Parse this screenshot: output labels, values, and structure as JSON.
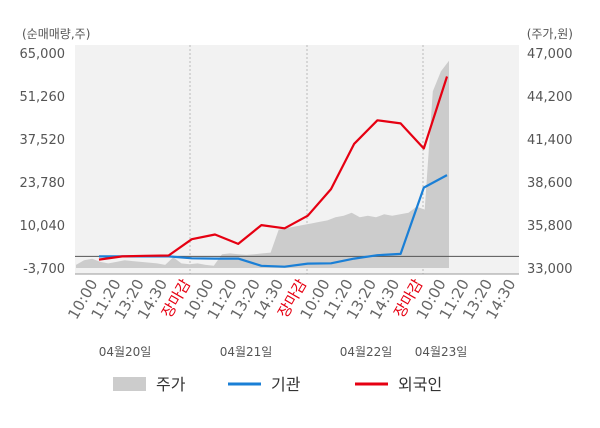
{
  "units": {
    "left": "(순매매량,주)",
    "right": "(주가,원)"
  },
  "chart_data": {
    "type": "line",
    "left_axis": {
      "ticks": [
        "65,000",
        "51,260",
        "37,520",
        "23,780",
        "10,040",
        "-3,700"
      ],
      "min": -3700,
      "max": 65000
    },
    "right_axis": {
      "ticks": [
        "47,000",
        "44,200",
        "41,400",
        "38,600",
        "35,800",
        "33,000"
      ],
      "min": 33000,
      "max": 47000
    },
    "x_ticks": [
      "10:00",
      "11:20",
      "13:20",
      "14:30",
      "장마감",
      "10:00",
      "11:20",
      "13:20",
      "14:30",
      "장마감",
      "10:00",
      "11:20",
      "13:20",
      "14:30",
      "장마감",
      "10:00",
      "11:20",
      "13:20",
      "14:30"
    ],
    "date_labels": [
      "04월20일",
      "04월21일",
      "04월22일",
      "04월23일"
    ],
    "series": [
      {
        "name": "주가",
        "style": "area",
        "axis": "right",
        "color": "#cccccc",
        "values": [
          33200,
          33500,
          33600,
          33400,
          33300,
          33400,
          33500,
          33450,
          33400,
          33350,
          33300,
          33200,
          33700,
          33300,
          33250,
          33300,
          33200,
          33150,
          33900,
          33950,
          33900,
          33850,
          33900,
          33950,
          34000,
          35500,
          35600,
          35700,
          35800,
          35900,
          36000,
          36100,
          36300,
          36400,
          36600,
          36300,
          36400,
          36300,
          36500,
          36400,
          36500,
          36600,
          37000,
          36800,
          44500,
          45800,
          46500
        ]
      },
      {
        "name": "기관",
        "style": "line",
        "axis": "left",
        "color": "#1a7fd6",
        "values": [
          0,
          0,
          0,
          0,
          -600,
          -700,
          -700,
          -3000,
          -3300,
          -2300,
          -2200,
          -700,
          400,
          800,
          22000,
          26000
        ]
      },
      {
        "name": "외국인",
        "style": "line",
        "axis": "left",
        "color": "#e60012",
        "values": [
          -1000,
          0,
          200,
          300,
          5500,
          7000,
          4000,
          10000,
          9000,
          13000,
          21500,
          36000,
          43500,
          42500,
          34500,
          57500
        ]
      }
    ],
    "grid": "vertical",
    "legend": "bottom"
  },
  "legend": [
    {
      "label": "주가",
      "color": "#cccccc",
      "kind": "area"
    },
    {
      "label": "기관",
      "color": "#1a7fd6",
      "kind": "line"
    },
    {
      "label": "외국인",
      "color": "#e60012",
      "kind": "line"
    }
  ]
}
